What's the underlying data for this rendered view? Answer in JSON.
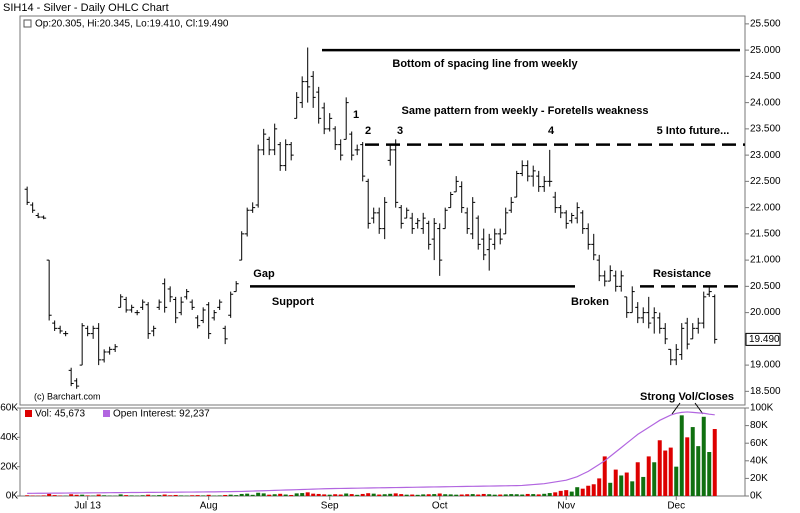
{
  "chart_data": {
    "type": "ohlc",
    "title": "SIH14 - Silver - Daily OHLC Chart",
    "legend_text": "Op:20.305, Hi:20.345, Lo:19.410, Cl:19.490",
    "copyright": "(c) Barchart.com",
    "bar_color": "#000000",
    "ohlc": [
      [
        22.35,
        22.4,
        22.05,
        22.1
      ],
      [
        22.05,
        22.1,
        21.9,
        21.95
      ],
      [
        21.85,
        21.9,
        21.8,
        21.82
      ],
      [
        21.82,
        21.85,
        21.78,
        21.8
      ],
      [
        21,
        21,
        19.85,
        19.95
      ],
      [
        19.8,
        19.85,
        19.65,
        19.7
      ],
      [
        19.7,
        19.75,
        19.6,
        19.65
      ],
      [
        19.6,
        19.65,
        19.55,
        19.6
      ],
      [
        18.9,
        18.95,
        18.6,
        18.65
      ],
      [
        18.7,
        18.75,
        18.55,
        18.6
      ],
      [
        19,
        19.8,
        19,
        19.75
      ],
      [
        19.7,
        19.75,
        19.55,
        19.6
      ],
      [
        19.6,
        19.75,
        19.5,
        19.7
      ],
      [
        19.7,
        19.8,
        19,
        19.1
      ],
      [
        19.1,
        19.3,
        19.05,
        19.25
      ],
      [
        19.25,
        19.35,
        19.2,
        19.3
      ],
      [
        19.3,
        19.4,
        19.25,
        19.35
      ],
      [
        20.1,
        20.35,
        20.1,
        20.3
      ],
      [
        20.25,
        20.3,
        20,
        20.05
      ],
      [
        20.05,
        20.15,
        20,
        20.1
      ],
      [
        20,
        20.05,
        19.95,
        20
      ],
      [
        20.1,
        20.25,
        20.05,
        20.2
      ],
      [
        20.15,
        20.2,
        19.5,
        19.6
      ],
      [
        19.65,
        19.75,
        19.55,
        19.7
      ],
      [
        20.1,
        20.25,
        20.05,
        20.2
      ],
      [
        20.55,
        20.65,
        20,
        20.1
      ],
      [
        20.45,
        20.5,
        20.2,
        20.3
      ],
      [
        20.25,
        20.3,
        19.8,
        19.9
      ],
      [
        20,
        20.3,
        19.95,
        20.2
      ],
      [
        20.3,
        20.45,
        20.25,
        20.4
      ],
      [
        20.2,
        20.25,
        20.05,
        20.1
      ],
      [
        19.9,
        19.95,
        19.7,
        19.75
      ],
      [
        19.85,
        20.1,
        19.8,
        20.05
      ],
      [
        20.15,
        20.2,
        19.5,
        19.6
      ],
      [
        19.9,
        20.05,
        19.85,
        20
      ],
      [
        20.1,
        20.25,
        20.05,
        20.2
      ],
      [
        19.7,
        19.75,
        19.4,
        19.5
      ],
      [
        19.95,
        20.4,
        19.9,
        20.35
      ],
      [
        20.4,
        20.6,
        20.4,
        20.55
      ],
      [
        21,
        21.55,
        21,
        21.5
      ],
      [
        21.5,
        22,
        21.45,
        21.95
      ],
      [
        21.95,
        22.1,
        21.9,
        22
      ],
      [
        22.05,
        23.2,
        22,
        23.1
      ],
      [
        23.1,
        23.5,
        23,
        23.4
      ],
      [
        23.3,
        23.35,
        23,
        23.1
      ],
      [
        23.1,
        23.6,
        23,
        23.5
      ],
      [
        23.2,
        23.25,
        22.7,
        22.8
      ],
      [
        22.8,
        23.3,
        22.7,
        23.2
      ],
      [
        23.2,
        23.25,
        22.9,
        23
      ],
      [
        23.7,
        24.2,
        23.7,
        24.1
      ],
      [
        24,
        24.5,
        23.9,
        24.4
      ],
      [
        24.4,
        25.05,
        24,
        24.3
      ],
      [
        24.5,
        24.6,
        23.9,
        24.1
      ],
      [
        24.2,
        24.3,
        23.6,
        23.7
      ],
      [
        23.9,
        24,
        23.4,
        23.5
      ],
      [
        23.5,
        23.8,
        23.45,
        23.7
      ],
      [
        23.5,
        23.55,
        23.1,
        23.2
      ],
      [
        23.2,
        23.3,
        22.9,
        23
      ],
      [
        23.3,
        24.1,
        23.3,
        24
      ],
      [
        23.4,
        23.45,
        22.9,
        23
      ],
      [
        23.1,
        23.2,
        23,
        23.1
      ],
      [
        23.2,
        23.25,
        22.5,
        22.6
      ],
      [
        22.5,
        22.55,
        21.6,
        21.7
      ],
      [
        21.8,
        22,
        21.7,
        21.9
      ],
      [
        21.9,
        22,
        21.5,
        21.6
      ],
      [
        21.6,
        22.2,
        21.4,
        22.1
      ],
      [
        22.9,
        23.2,
        22.8,
        23.1
      ],
      [
        23.1,
        23.3,
        22,
        22.1
      ],
      [
        22,
        22.05,
        21.6,
        21.7
      ],
      [
        21.8,
        22,
        21.8,
        21.95
      ],
      [
        21.8,
        21.9,
        21.5,
        21.6
      ],
      [
        21.7,
        21.8,
        21.6,
        21.75
      ],
      [
        21.6,
        21.9,
        21.5,
        21.8
      ],
      [
        21.7,
        21.75,
        21.2,
        21.3
      ],
      [
        21.4,
        21.8,
        21,
        21.7
      ],
      [
        21.6,
        21.7,
        20.7,
        21
      ],
      [
        21.6,
        22,
        21.6,
        21.95
      ],
      [
        22,
        22.3,
        22,
        22.25
      ],
      [
        22.3,
        22.6,
        22.3,
        22.5
      ],
      [
        22.4,
        22.5,
        21.9,
        22
      ],
      [
        21.9,
        22,
        21.5,
        21.6
      ],
      [
        21.5,
        22.2,
        21.4,
        22.1
      ],
      [
        21.8,
        21.85,
        21.2,
        21.3
      ],
      [
        21.4,
        21.6,
        21,
        21.1
      ],
      [
        21.2,
        21.5,
        20.8,
        21.4
      ],
      [
        21.3,
        21.6,
        21.2,
        21.5
      ],
      [
        21.5,
        21.6,
        21.3,
        21.4
      ],
      [
        21.5,
        22,
        21.5,
        21.9
      ],
      [
        21.95,
        22.2,
        21.9,
        22.1
      ],
      [
        22.2,
        22.7,
        22.2,
        22.65
      ],
      [
        22.65,
        22.9,
        22.6,
        22.8
      ],
      [
        22.8,
        22.9,
        22.5,
        22.6
      ],
      [
        22.6,
        22.8,
        22.4,
        22.7
      ],
      [
        22.6,
        22.7,
        22.3,
        22.4
      ],
      [
        22.4,
        22.6,
        22.3,
        22.5
      ],
      [
        22.5,
        23.1,
        22.4,
        22.5
      ],
      [
        22.2,
        22.3,
        21.9,
        22
      ],
      [
        22,
        22.05,
        21.8,
        21.9
      ],
      [
        21.9,
        21.95,
        21.6,
        21.7
      ],
      [
        21.75,
        21.9,
        21.7,
        21.85
      ],
      [
        21.8,
        22.1,
        21.7,
        22
      ],
      [
        21.9,
        21.95,
        21.5,
        21.6
      ],
      [
        21.6,
        21.7,
        21.2,
        21.3
      ],
      [
        21.3,
        21.5,
        21,
        21.1
      ],
      [
        21,
        21.1,
        20.6,
        20.7
      ],
      [
        20.7,
        20.8,
        20.5,
        20.6
      ],
      [
        20.6,
        20.9,
        20.6,
        20.8
      ],
      [
        20.7,
        20.8,
        20.4,
        20.5
      ],
      [
        20.5,
        20.8,
        20.4,
        20.7
      ],
      [
        20.3,
        20.3,
        19.9,
        20
      ],
      [
        20,
        20.5,
        20,
        20.4
      ],
      [
        20.1,
        20.2,
        19.8,
        19.9
      ],
      [
        19.9,
        20.1,
        19.8,
        20
      ],
      [
        20,
        20.3,
        19.7,
        19.8
      ],
      [
        19.9,
        20.1,
        19.6,
        20
      ],
      [
        19.9,
        20,
        19.6,
        19.7
      ],
      [
        19.7,
        19.8,
        19.4,
        19.5
      ],
      [
        19.3,
        19.3,
        19,
        19.1
      ],
      [
        19.1,
        19.4,
        19,
        19.3
      ],
      [
        19.2,
        19.8,
        19.1,
        19.7
      ],
      [
        19.8,
        19.9,
        19.3,
        19.4
      ],
      [
        19.5,
        19.8,
        19.5,
        19.7
      ],
      [
        19.7,
        19.9,
        19.6,
        19.8
      ],
      [
        19.8,
        20.4,
        19.7,
        20.3
      ],
      [
        20.35,
        20.5,
        20.3,
        20.4
      ],
      [
        20.305,
        20.345,
        19.41,
        19.49
      ]
    ],
    "xlim": [
      -1.3,
      130.5
    ],
    "xticks": [
      {
        "value": 11,
        "label": "Jul 13"
      },
      {
        "value": 33,
        "label": "Aug"
      },
      {
        "value": 55,
        "label": "Sep"
      },
      {
        "value": 75,
        "label": "Oct"
      },
      {
        "value": 98,
        "label": "Nov"
      },
      {
        "value": 118,
        "label": "Dec"
      }
    ],
    "ylim": [
      18.24,
      25.65
    ],
    "yticks": [
      {
        "value": 18.5,
        "label": "18.500"
      },
      {
        "value": 19,
        "label": "19.000"
      },
      {
        "value": 19.5,
        "label": "19.500"
      },
      {
        "value": 20,
        "label": "20.000"
      },
      {
        "value": 20.5,
        "label": "20.500"
      },
      {
        "value": 21,
        "label": "21.000"
      },
      {
        "value": 21.5,
        "label": "21.500"
      },
      {
        "value": 22,
        "label": "22.000"
      },
      {
        "value": 22.5,
        "label": "22.500"
      },
      {
        "value": 23,
        "label": "23.000"
      },
      {
        "value": 23.5,
        "label": "23.500"
      },
      {
        "value": 24,
        "label": "24.000"
      },
      {
        "value": 24.5,
        "label": "24.500"
      },
      {
        "value": 25,
        "label": "25.000"
      },
      {
        "value": 25.5,
        "label": "25.500"
      }
    ],
    "last_price": {
      "value": 19.49,
      "label": "19.490"
    },
    "levels": [
      {
        "value": 25,
        "style": "solid"
      },
      {
        "value": 23.2,
        "style": "dashed"
      },
      {
        "value": 20.5,
        "style": "solid"
      },
      {
        "value": 20.5,
        "style": "dashed"
      }
    ],
    "annotations": [
      "Bottom of spacing line from weekly",
      "Same pattern from weekly - Foretells weakness",
      "1",
      "2",
      "3",
      "4",
      "5 Into future...",
      "Gap",
      "Support",
      "Broken",
      "Resistance",
      "Strong Vol/Closes"
    ],
    "volume": {
      "name": "Vol: 45,673",
      "color": "#dd0000",
      "up_color": "#107010",
      "values": [
        500,
        300,
        200,
        400,
        1500,
        600,
        300,
        200,
        1200,
        800,
        900,
        400,
        300,
        1000,
        500,
        300,
        200,
        1100,
        600,
        400,
        300,
        500,
        900,
        400,
        600,
        1000,
        500,
        700,
        400,
        300,
        500,
        600,
        400,
        800,
        300,
        400,
        700,
        900,
        600,
        1400,
        1600,
        800,
        2200,
        1800,
        900,
        1200,
        1500,
        1000,
        700,
        1800,
        2000,
        2500,
        1600,
        1400,
        1100,
        900,
        1200,
        1000,
        1700,
        1300,
        800,
        1400,
        1900,
        1600,
        1000,
        1200,
        1500,
        1800,
        1300,
        900,
        1000,
        800,
        1100,
        1200,
        1300,
        1700,
        1200,
        1100,
        900,
        1000,
        1200,
        1300,
        1000,
        1400,
        1200,
        900,
        1000,
        1100,
        1300,
        1200,
        1000,
        1400,
        1300,
        1100,
        1500,
        2000,
        2500,
        3500,
        4000,
        3000,
        6000,
        5000,
        7000,
        8000,
        12000,
        27000,
        9000,
        18000,
        14000,
        16000,
        10000,
        23000,
        13000,
        27000,
        23000,
        38000,
        31000,
        33000,
        20000,
        55000,
        40000,
        47000,
        34000,
        54000,
        30000,
        45673
      ],
      "ylim": [
        0,
        60000
      ],
      "yticks": [
        {
          "value": 0,
          "label": "0K"
        },
        {
          "value": 20000,
          "label": "20K"
        },
        {
          "value": 40000,
          "label": "40K"
        },
        {
          "value": 60000,
          "label": "60K"
        }
      ]
    },
    "open_interest": {
      "name": "Open Interest: 92,237",
      "color": "#b266e0",
      "values": [
        3000,
        3050,
        3100,
        3150,
        3200,
        3250,
        3300,
        3350,
        3400,
        3450,
        3500,
        3550,
        3600,
        3650,
        3700,
        3750,
        3800,
        3850,
        3900,
        3950,
        4000,
        4050,
        4100,
        4150,
        4200,
        4250,
        4300,
        4350,
        4400,
        4450,
        4500,
        4550,
        4600,
        4650,
        4700,
        4800,
        4900,
        5000,
        5100,
        5200,
        5400,
        5600,
        5800,
        6000,
        6200,
        6400,
        6600,
        6800,
        7000,
        7200,
        7400,
        7600,
        7800,
        8000,
        8200,
        8400,
        8500,
        8600,
        8700,
        8800,
        8900,
        9000,
        9100,
        9200,
        9300,
        9400,
        9500,
        9600,
        9700,
        9800,
        9900,
        10000,
        10100,
        10200,
        10300,
        10400,
        10500,
        10600,
        10700,
        10800,
        10900,
        11000,
        11100,
        11200,
        11300,
        11400,
        11500,
        11600,
        11700,
        11800,
        12000,
        12500,
        13000,
        13500,
        14000,
        15000,
        16000,
        17000,
        18000,
        20000,
        22000,
        25000,
        28000,
        32000,
        36000,
        40000,
        45000,
        50000,
        55000,
        60000,
        65000,
        70000,
        74000,
        78000,
        82000,
        86000,
        89000,
        92000,
        94000,
        95000,
        95500,
        95000,
        94500,
        94000,
        93000,
        92237
      ],
      "ylim": [
        0,
        100000
      ],
      "yticks": [
        {
          "value": 0,
          "label": "0K"
        },
        {
          "value": 20000,
          "label": "20K"
        },
        {
          "value": 40000,
          "label": "40K"
        },
        {
          "value": 60000,
          "label": "60K"
        },
        {
          "value": 80000,
          "label": "80K"
        },
        {
          "value": 100000,
          "label": "100K"
        }
      ]
    }
  }
}
